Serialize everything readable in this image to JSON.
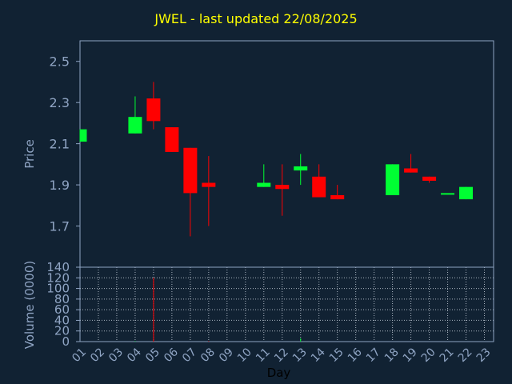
{
  "chart_data": [
    {
      "type": "candlestick",
      "title": "JWEL - last updated 22/08/2025",
      "ylabel": "Price",
      "ylim": [
        1.5,
        2.6
      ],
      "yticks": [
        "1.7",
        "1.9",
        "2.1",
        "2.3",
        "2.5"
      ],
      "grid": true,
      "colors": {
        "up": "#00ff33",
        "down": "#ff0000"
      },
      "candles": [
        {
          "day": "01",
          "open": 2.11,
          "high": 2.17,
          "low": 2.11,
          "close": 2.17
        },
        {
          "day": "04",
          "open": 2.15,
          "high": 2.33,
          "low": 2.15,
          "close": 2.23
        },
        {
          "day": "05",
          "open": 2.32,
          "high": 2.4,
          "low": 2.17,
          "close": 2.21
        },
        {
          "day": "06",
          "open": 2.18,
          "high": 2.18,
          "low": 2.06,
          "close": 2.06
        },
        {
          "day": "07",
          "open": 2.08,
          "high": 2.08,
          "low": 1.65,
          "close": 1.86
        },
        {
          "day": "08",
          "open": 1.91,
          "high": 2.04,
          "low": 1.7,
          "close": 1.89
        },
        {
          "day": "11",
          "open": 1.89,
          "high": 2.0,
          "low": 1.89,
          "close": 1.91
        },
        {
          "day": "12",
          "open": 1.9,
          "high": 2.0,
          "low": 1.75,
          "close": 1.88
        },
        {
          "day": "13",
          "open": 1.97,
          "high": 2.05,
          "low": 1.9,
          "close": 1.99
        },
        {
          "day": "14",
          "open": 1.94,
          "high": 2.0,
          "low": 1.84,
          "close": 1.84
        },
        {
          "day": "15",
          "open": 1.85,
          "high": 1.9,
          "low": 1.83,
          "close": 1.83
        },
        {
          "day": "18",
          "open": 1.85,
          "high": 2.0,
          "low": 1.85,
          "close": 2.0
        },
        {
          "day": "19",
          "open": 1.98,
          "high": 2.05,
          "low": 1.96,
          "close": 1.96
        },
        {
          "day": "20",
          "open": 1.94,
          "high": 1.94,
          "low": 1.91,
          "close": 1.92
        },
        {
          "day": "21",
          "open": 1.86,
          "high": 1.86,
          "low": 1.86,
          "close": 1.86
        },
        {
          "day": "22",
          "open": 1.83,
          "high": 1.89,
          "low": 1.83,
          "close": 1.89
        }
      ]
    },
    {
      "type": "bar",
      "ylabel": "Volume (0000)",
      "xlabel": "Day",
      "ylim": [
        0,
        140
      ],
      "yticks": [
        "0",
        "20",
        "40",
        "60",
        "80",
        "100",
        "120",
        "140"
      ],
      "categories": [
        "01",
        "02",
        "03",
        "04",
        "05",
        "06",
        "07",
        "08",
        "09",
        "10",
        "11",
        "12",
        "13",
        "14",
        "15",
        "16",
        "17",
        "18",
        "19",
        "20",
        "21",
        "22",
        "23"
      ],
      "bars": [
        {
          "day": "04",
          "value": 1,
          "color": "#00ff33"
        },
        {
          "day": "05",
          "value": 120,
          "color": "#ff0000"
        },
        {
          "day": "08",
          "value": 1,
          "color": "#ff0000"
        },
        {
          "day": "13",
          "value": 6,
          "color": "#00ff33"
        }
      ]
    }
  ]
}
